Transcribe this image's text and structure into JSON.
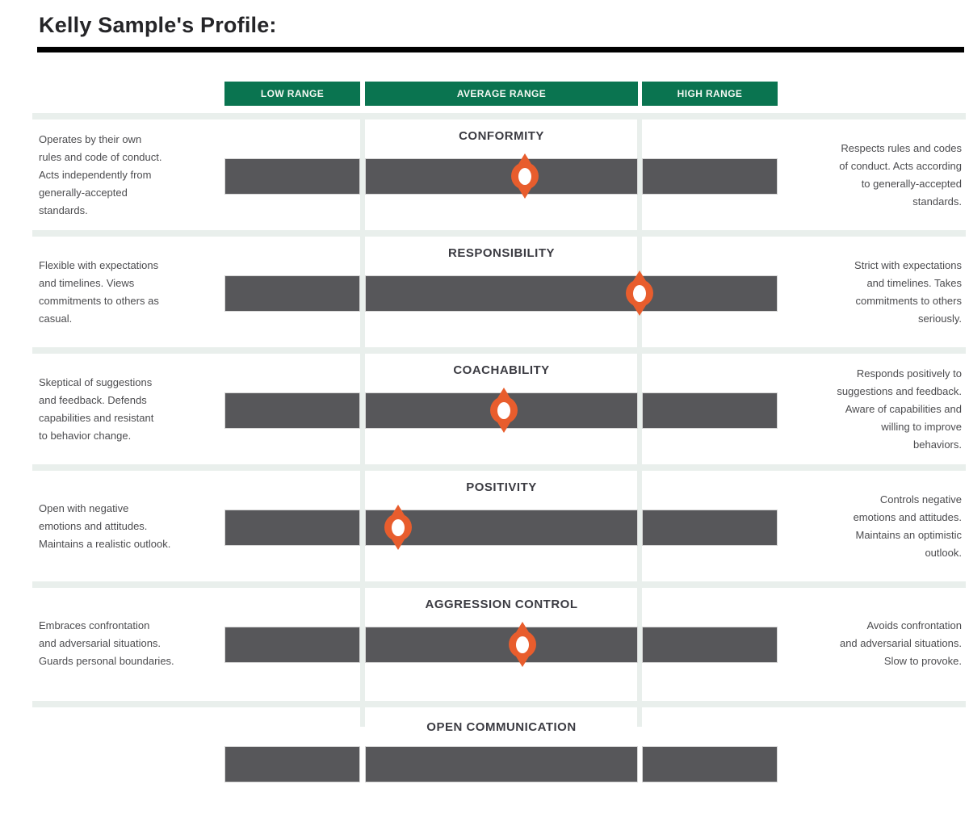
{
  "page": {
    "title": "Kelly Sample's Profile:"
  },
  "colors": {
    "green": "#0a7450",
    "bar": "#57575a",
    "bar-border": "#d6d6d6",
    "marker": "#e85d2d",
    "band": "#e9efec",
    "title": "#252528",
    "trait": "#3b3b42",
    "body": "#4c4c4f",
    "headertext": "#f4f8f3"
  },
  "header": {
    "low": "LOW RANGE",
    "average": "AVERAGE RANGE",
    "high": "HIGH RANGE"
  },
  "rows": [
    {
      "trait": "CONFORMITY",
      "low_text": "Operates by their own\nrules and code of conduct.\nActs independently from\ngenerally-accepted\nstandards.",
      "high_text": "Respects rules and codes\nof conduct. Acts according\nto generally-accepted\nstandards.",
      "marker_percent": 54.3
    },
    {
      "trait": "RESPONSIBILITY",
      "low_text": "Flexible with expectations\nand timelines. Views\ncommitments to others as\ncasual.",
      "high_text": "Strict with expectations\nand timelines. Takes\ncommitments to others\nseriously.",
      "marker_percent": 75.0
    },
    {
      "trait": "COACHABILITY",
      "low_text": "Skeptical of suggestions\nand feedback. Defends\ncapabilities and resistant\nto behavior change.",
      "high_text": "Responds positively to\nsuggestions and feedback.\nAware of capabilities and\nwilling to improve\nbehaviors.",
      "marker_percent": 50.5
    },
    {
      "trait": "POSITIVITY",
      "low_text": "Open with negative\nemotions and attitudes.\nMaintains a realistic outlook.",
      "high_text": "Controls negative\nemotions and attitudes.\nMaintains an optimistic\noutlook.",
      "marker_percent": 31.4
    },
    {
      "trait": "AGGRESSION CONTROL",
      "low_text": "Embraces confrontation\nand adversarial situations.\nGuards personal boundaries.",
      "high_text": "Avoids confrontation\nand adversarial situations.\nSlow to provoke.",
      "marker_percent": 53.9
    },
    {
      "trait": "OPEN COMMUNICATION",
      "low_text": "",
      "high_text": "",
      "marker_percent": null
    }
  ],
  "chart_data": {
    "type": "scatter",
    "title": "Kelly Sample's Profile:",
    "categories": [
      "Conformity",
      "Responsibility",
      "Coachability",
      "Positivity",
      "Aggression Control",
      "Open Communication"
    ],
    "values_percent_of_scale": [
      54.3,
      75.0,
      50.5,
      31.4,
      53.9,
      null
    ],
    "xlabel": "",
    "ylabel": "",
    "x_ranges": [
      {
        "label": "LOW RANGE",
        "from_percent": 0,
        "to_percent": 25
      },
      {
        "label": "AVERAGE RANGE",
        "from_percent": 25,
        "to_percent": 75
      },
      {
        "label": "HIGH RANGE",
        "from_percent": 75,
        "to_percent": 100
      }
    ],
    "legend_position": "none",
    "grid": false
  }
}
